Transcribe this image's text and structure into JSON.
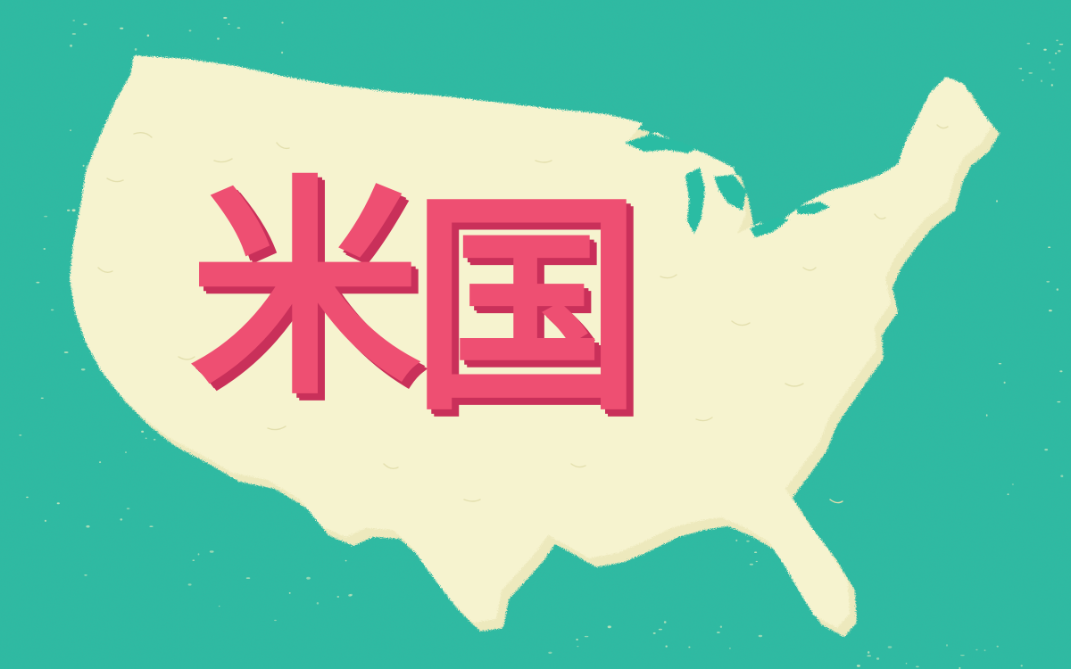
{
  "colors": {
    "ocean": "#2bbca3",
    "ocean_speckle": "#cfe9c0",
    "land": "#f6f3cf",
    "land_shadow": "#ede9bd",
    "land_lines": "#e3dfae",
    "kanji_face": "#ee4f72",
    "kanji_side": "#c9305a"
  },
  "map": {
    "subject": "contiguous-united-states-map"
  },
  "title": {
    "char_1": "米",
    "char_2": "国"
  }
}
